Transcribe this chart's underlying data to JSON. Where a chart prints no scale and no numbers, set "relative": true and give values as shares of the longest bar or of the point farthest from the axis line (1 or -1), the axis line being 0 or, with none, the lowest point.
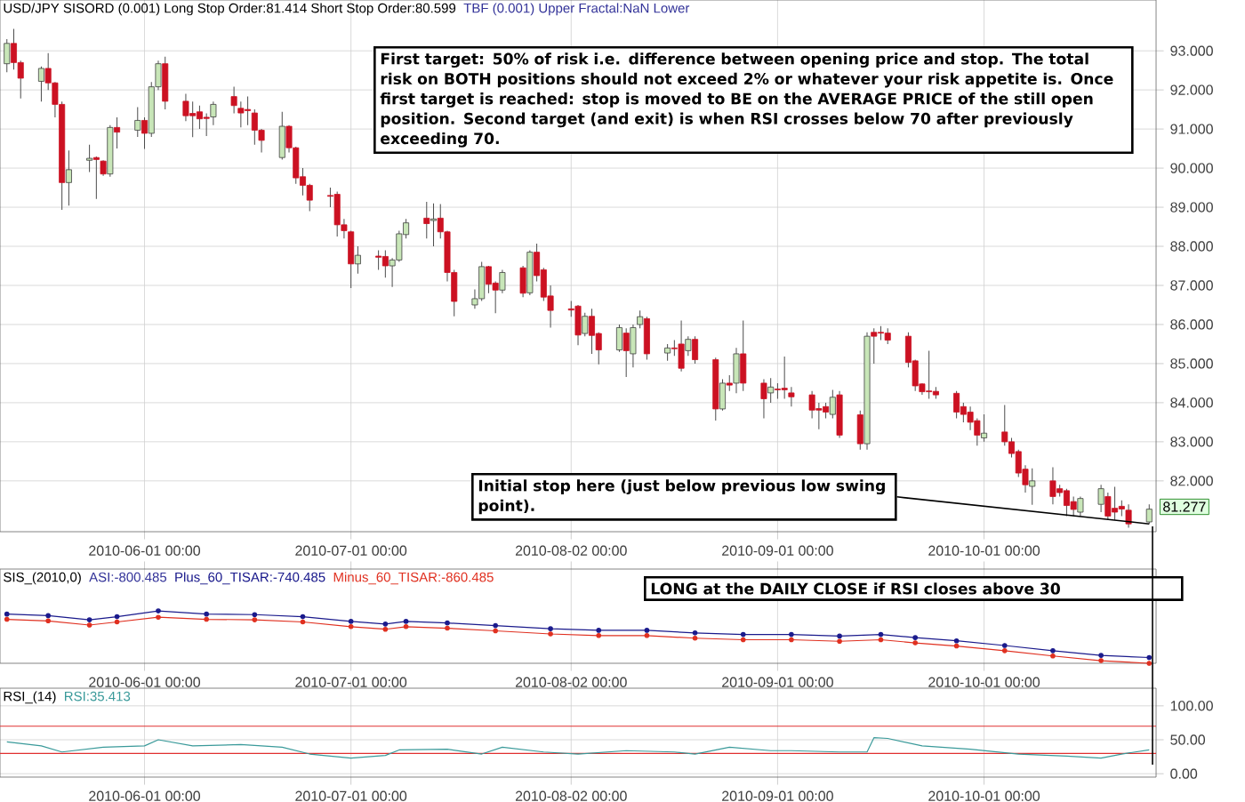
{
  "chart_data": [
    {
      "type": "candlestick",
      "title": "USD/JPY SISORD (0.001) Long Stop Order:81.414 Short Stop Order:80.599",
      "subtitle": "TBF (0.001) Upper Fractal:NaN Lower",
      "x": [
        "2010-05-12",
        "2010-05-13",
        "2010-05-14",
        "2010-05-17",
        "2010-05-18",
        "2010-05-19",
        "2010-05-20",
        "2010-05-21",
        "2010-05-24",
        "2010-05-25",
        "2010-05-26",
        "2010-05-27",
        "2010-05-28",
        "2010-05-31",
        "2010-06-01",
        "2010-06-02",
        "2010-06-03",
        "2010-06-04",
        "2010-06-07",
        "2010-06-08",
        "2010-06-09",
        "2010-06-10",
        "2010-06-11",
        "2010-06-14",
        "2010-06-15",
        "2010-06-16",
        "2010-06-17",
        "2010-06-18",
        "2010-06-21",
        "2010-06-22",
        "2010-06-23",
        "2010-06-24",
        "2010-06-25",
        "2010-06-28",
        "2010-06-29",
        "2010-06-30",
        "2010-07-01",
        "2010-07-02",
        "2010-07-05",
        "2010-07-06",
        "2010-07-07",
        "2010-07-08",
        "2010-07-09",
        "2010-07-12",
        "2010-07-13",
        "2010-07-14",
        "2010-07-15",
        "2010-07-16",
        "2010-07-19",
        "2010-07-20",
        "2010-07-21",
        "2010-07-22",
        "2010-07-23",
        "2010-07-26",
        "2010-07-27",
        "2010-07-28",
        "2010-07-29",
        "2010-07-30",
        "2010-08-02",
        "2010-08-03",
        "2010-08-04",
        "2010-08-05",
        "2010-08-06",
        "2010-08-09",
        "2010-08-10",
        "2010-08-11",
        "2010-08-12",
        "2010-08-13",
        "2010-08-16",
        "2010-08-17",
        "2010-08-18",
        "2010-08-19",
        "2010-08-20",
        "2010-08-23",
        "2010-08-24",
        "2010-08-25",
        "2010-08-26",
        "2010-08-27",
        "2010-08-30",
        "2010-08-31",
        "2010-09-01",
        "2010-09-02",
        "2010-09-03",
        "2010-09-06",
        "2010-09-07",
        "2010-09-08",
        "2010-09-09",
        "2010-09-10",
        "2010-09-13",
        "2010-09-14",
        "2010-09-15",
        "2010-09-16",
        "2010-09-17",
        "2010-09-20",
        "2010-09-21",
        "2010-09-22",
        "2010-09-23",
        "2010-09-24",
        "2010-09-27",
        "2010-09-28",
        "2010-09-29",
        "2010-09-30",
        "2010-10-01",
        "2010-10-04",
        "2010-10-05",
        "2010-10-06",
        "2010-10-07",
        "2010-10-08",
        "2010-10-11",
        "2010-10-12",
        "2010-10-13",
        "2010-10-14",
        "2010-10-15",
        "2010-10-18",
        "2010-10-19",
        "2010-10-20",
        "2010-10-21",
        "2010-10-22",
        "2010-10-25"
      ],
      "ohlc": [
        [
          92.67,
          93.3,
          92.45,
          93.19
        ],
        [
          93.19,
          93.56,
          92.52,
          92.7
        ],
        [
          92.7,
          92.75,
          91.78,
          92.3
        ],
        [
          92.22,
          92.6,
          91.7,
          92.55
        ],
        [
          92.55,
          92.94,
          92.0,
          92.18
        ],
        [
          92.18,
          92.2,
          91.3,
          91.63
        ],
        [
          91.63,
          91.7,
          88.93,
          89.63
        ],
        [
          89.63,
          90.45,
          89.04,
          89.96
        ],
        [
          90.2,
          90.6,
          89.9,
          90.25
        ],
        [
          90.27,
          90.3,
          89.21,
          90.22
        ],
        [
          90.18,
          90.2,
          89.8,
          89.85
        ],
        [
          89.85,
          91.1,
          89.78,
          91.04
        ],
        [
          91.04,
          91.3,
          90.5,
          90.92
        ],
        [
          90.97,
          91.56,
          90.8,
          91.22
        ],
        [
          91.22,
          91.3,
          90.49,
          90.89
        ],
        [
          90.89,
          92.2,
          90.8,
          92.08
        ],
        [
          92.08,
          92.75,
          92.0,
          92.67
        ],
        [
          92.67,
          92.85,
          91.5,
          91.71
        ],
        [
          91.71,
          91.9,
          91.2,
          91.34
        ],
        [
          91.4,
          91.7,
          90.79,
          91.34
        ],
        [
          91.44,
          91.6,
          91.0,
          91.26
        ],
        [
          91.3,
          91.4,
          90.82,
          91.27
        ],
        [
          91.31,
          91.7,
          91.1,
          91.63
        ],
        [
          91.83,
          92.08,
          91.4,
          91.6
        ],
        [
          91.53,
          91.7,
          91.04,
          91.41
        ],
        [
          91.5,
          91.83,
          91.1,
          91.47
        ],
        [
          91.41,
          91.5,
          90.6,
          90.97
        ],
        [
          90.97,
          91.0,
          90.4,
          90.71
        ],
        [
          90.27,
          91.44,
          90.22,
          91.07
        ],
        [
          91.07,
          91.1,
          90.4,
          90.52
        ],
        [
          90.52,
          90.55,
          89.6,
          89.75
        ],
        [
          89.78,
          90.0,
          89.3,
          89.56
        ],
        [
          89.56,
          89.6,
          88.9,
          89.18
        ],
        [
          89.3,
          89.5,
          89.0,
          89.28
        ],
        [
          89.33,
          89.4,
          88.25,
          88.55
        ],
        [
          88.55,
          88.7,
          88.2,
          88.4
        ],
        [
          88.37,
          88.4,
          86.93,
          87.55
        ],
        [
          87.55,
          88.0,
          87.3,
          87.77
        ],
        [
          87.75,
          87.9,
          87.4,
          87.72
        ],
        [
          87.74,
          87.9,
          87.2,
          87.5
        ],
        [
          87.5,
          87.7,
          86.96,
          87.65
        ],
        [
          87.65,
          88.4,
          87.6,
          88.32
        ],
        [
          88.3,
          88.7,
          88.2,
          88.6
        ],
        [
          88.72,
          89.14,
          88.2,
          88.58
        ],
        [
          88.66,
          89.1,
          88.0,
          88.7
        ],
        [
          88.72,
          89.08,
          88.2,
          88.37
        ],
        [
          88.37,
          88.4,
          87.1,
          87.33
        ],
        [
          87.33,
          87.4,
          86.21,
          86.59
        ],
        [
          86.5,
          86.9,
          86.4,
          86.66
        ],
        [
          86.66,
          87.6,
          86.6,
          87.48
        ],
        [
          87.48,
          87.5,
          86.8,
          87.03
        ],
        [
          87.06,
          87.1,
          86.29,
          86.88
        ],
        [
          86.88,
          87.4,
          86.8,
          87.33
        ],
        [
          87.45,
          87.5,
          86.7,
          86.8
        ],
        [
          86.81,
          87.9,
          86.75,
          87.85
        ],
        [
          87.85,
          88.07,
          87.1,
          87.25
        ],
        [
          87.4,
          87.45,
          86.6,
          86.7
        ],
        [
          86.73,
          87.0,
          85.92,
          86.36
        ],
        [
          86.4,
          86.6,
          86.2,
          86.37
        ],
        [
          86.47,
          86.5,
          85.47,
          85.73
        ],
        [
          85.77,
          86.3,
          85.7,
          86.21
        ],
        [
          86.21,
          86.4,
          85.25,
          85.72
        ],
        [
          85.77,
          85.8,
          84.98,
          85.35
        ],
        [
          85.35,
          86.0,
          85.3,
          85.92
        ],
        [
          85.78,
          85.9,
          84.66,
          85.33
        ],
        [
          85.25,
          86.0,
          84.9,
          85.92
        ],
        [
          86.0,
          86.36,
          85.9,
          86.2
        ],
        [
          86.15,
          86.2,
          85.1,
          85.25
        ],
        [
          85.27,
          85.5,
          85.07,
          85.4
        ],
        [
          85.4,
          85.6,
          85.2,
          85.38
        ],
        [
          85.5,
          86.1,
          84.8,
          84.88
        ],
        [
          85.33,
          85.7,
          85.2,
          85.62
        ],
        [
          85.62,
          85.7,
          85.0,
          85.1
        ],
        [
          85.1,
          85.15,
          83.54,
          83.84
        ],
        [
          83.84,
          84.6,
          83.8,
          84.5
        ],
        [
          84.5,
          84.7,
          84.3,
          84.45
        ],
        [
          84.5,
          85.4,
          84.24,
          85.25
        ],
        [
          85.25,
          86.1,
          84.3,
          84.5
        ],
        [
          84.5,
          84.6,
          83.6,
          84.1
        ],
        [
          84.25,
          84.63,
          84.0,
          84.4
        ],
        [
          84.35,
          84.5,
          84.1,
          84.33
        ],
        [
          84.37,
          85.18,
          84.1,
          84.33
        ],
        [
          84.25,
          84.4,
          83.9,
          84.15
        ],
        [
          84.2,
          84.3,
          83.6,
          83.81
        ],
        [
          83.85,
          84.0,
          83.32,
          83.81
        ],
        [
          83.9,
          84.0,
          83.6,
          83.76
        ],
        [
          83.7,
          84.33,
          83.6,
          84.14
        ],
        [
          84.2,
          84.3,
          83.1,
          83.17
        ],
        [
          83.69,
          83.8,
          82.8,
          82.95
        ],
        [
          82.95,
          85.8,
          82.8,
          85.7
        ],
        [
          85.8,
          85.9,
          85.0,
          85.7
        ],
        [
          85.8,
          85.96,
          85.6,
          85.78
        ],
        [
          85.78,
          85.9,
          85.5,
          85.6
        ],
        [
          85.7,
          85.8,
          84.9,
          85.03
        ],
        [
          85.07,
          85.1,
          84.3,
          84.43
        ],
        [
          84.48,
          84.5,
          84.2,
          84.28
        ],
        [
          84.3,
          85.33,
          84.1,
          84.28
        ],
        [
          84.29,
          84.4,
          84.1,
          84.2
        ],
        [
          84.24,
          84.3,
          83.6,
          83.76
        ],
        [
          83.9,
          84.0,
          83.5,
          83.7
        ],
        [
          83.76,
          83.9,
          83.3,
          83.5
        ],
        [
          83.54,
          83.6,
          82.9,
          83.17
        ],
        [
          83.1,
          83.7,
          83.0,
          83.22
        ],
        [
          83.25,
          83.94,
          82.9,
          83.0
        ],
        [
          83.0,
          83.1,
          82.6,
          82.7
        ],
        [
          82.75,
          82.8,
          82.1,
          82.2
        ],
        [
          82.3,
          82.4,
          81.7,
          81.9
        ],
        [
          81.86,
          82.32,
          81.39,
          82.0
        ],
        [
          82.0,
          82.35,
          81.4,
          81.6
        ],
        [
          81.8,
          81.9,
          81.6,
          81.7
        ],
        [
          81.75,
          81.8,
          81.1,
          81.37
        ],
        [
          81.47,
          81.6,
          81.1,
          81.27
        ],
        [
          81.2,
          81.6,
          81.1,
          81.55
        ],
        [
          81.4,
          81.9,
          81.2,
          81.8
        ],
        [
          81.6,
          81.7,
          81.0,
          81.1
        ],
        [
          81.3,
          81.85,
          81.0,
          81.2
        ],
        [
          81.35,
          81.5,
          81.1,
          81.28
        ],
        [
          81.25,
          81.4,
          80.8,
          80.9
        ],
        [
          80.95,
          81.4,
          80.9,
          81.277
        ]
      ],
      "xlim": [
        "2010-05-11",
        "2010-10-26"
      ],
      "ylim": [
        80.7,
        94.3
      ],
      "xticks": [
        {
          "value": "2010-06-01T00:00",
          "label": "2010-06-01 00:00"
        },
        {
          "value": "2010-07-01T00:00",
          "label": "2010-07-01 00:00"
        },
        {
          "value": "2010-08-02T00:00",
          "label": "2010-08-02 00:00"
        },
        {
          "value": "2010-09-01T00:00",
          "label": "2010-09-01 00:00"
        },
        {
          "value": "2010-10-01T00:00",
          "label": "2010-10-01 00:00"
        }
      ],
      "yticks": [
        {
          "value": 82,
          "label": "82.000"
        },
        {
          "value": 83,
          "label": "83.000"
        },
        {
          "value": 84,
          "label": "84.000"
        },
        {
          "value": 85,
          "label": "85.000"
        },
        {
          "value": 86,
          "label": "86.000"
        },
        {
          "value": 87,
          "label": "87.000"
        },
        {
          "value": 88,
          "label": "88.000"
        },
        {
          "value": 89,
          "label": "89.000"
        },
        {
          "value": 90,
          "label": "90.000"
        },
        {
          "value": 91,
          "label": "91.000"
        },
        {
          "value": 92,
          "label": "92.000"
        },
        {
          "value": 93,
          "label": "93.000"
        }
      ],
      "grid": true,
      "annotations": [
        "First target: 50% of risk i.e. difference between opening price and stop. The total risk on BOTH positions should not exceed 2% or whatever your risk appetite is. Once first target is reached: stop is moved to BE on the AVERAGE PRICE of the still open position. Second target (and exit) is when RSI crosses below 70 after previously exceeding 70.",
        {
          "text": "Initial stop here (just below previous low swing point).",
          "x": "2010-10-25",
          "y": 80.9
        },
        "81.277"
      ]
    },
    {
      "type": "line",
      "title": "SIS_(2010,0)",
      "subtitle": "ASI:-800.485",
      "relative": true,
      "marker": "circle",
      "legend": "top left",
      "grid": true,
      "xlim": [
        "2010-05-11",
        "2010-10-26"
      ],
      "xticks": [
        {
          "value": "2010-06-01T00:00",
          "label": "2010-06-01 00:00"
        },
        {
          "value": "2010-07-01T00:00",
          "label": "2010-07-01 00:00"
        },
        {
          "value": "2010-08-02T00:00",
          "label": "2010-08-02 00:00"
        },
        {
          "value": "2010-09-01T00:00",
          "label": "2010-09-01 00:00"
        },
        {
          "value": "2010-10-01T00:00",
          "label": "2010-10-01 00:00"
        }
      ],
      "series": [
        {
          "name": "Plus_60_TISAR:-740.485",
          "color": "#1a1a8c",
          "x": [
            "2010-05-12",
            "2010-05-18",
            "2010-05-24",
            "2010-05-28",
            "2010-06-03",
            "2010-06-10",
            "2010-06-17",
            "2010-06-24",
            "2010-07-01",
            "2010-07-06",
            "2010-07-09",
            "2010-07-15",
            "2010-07-22",
            "2010-07-30",
            "2010-08-06",
            "2010-08-13",
            "2010-08-20",
            "2010-08-27",
            "2010-09-03",
            "2010-09-10",
            "2010-09-16",
            "2010-09-21",
            "2010-09-27",
            "2010-10-04",
            "2010-10-11",
            "2010-10-18",
            "2010-10-25"
          ],
          "values": [
            0.94,
            0.91,
            0.83,
            0.89,
            1.0,
            0.94,
            0.93,
            0.89,
            0.8,
            0.75,
            0.8,
            0.77,
            0.72,
            0.66,
            0.63,
            0.63,
            0.58,
            0.55,
            0.55,
            0.52,
            0.55,
            0.49,
            0.43,
            0.34,
            0.24,
            0.15,
            0.11
          ]
        },
        {
          "name": "Minus_60_TISAR:-860.485",
          "color": "#e03020",
          "x": [
            "2010-05-12",
            "2010-05-18",
            "2010-05-24",
            "2010-05-28",
            "2010-06-03",
            "2010-06-10",
            "2010-06-17",
            "2010-06-24",
            "2010-07-01",
            "2010-07-06",
            "2010-07-09",
            "2010-07-15",
            "2010-07-22",
            "2010-07-30",
            "2010-08-06",
            "2010-08-13",
            "2010-08-20",
            "2010-08-27",
            "2010-09-03",
            "2010-09-10",
            "2010-09-16",
            "2010-09-21",
            "2010-09-27",
            "2010-10-04",
            "2010-10-11",
            "2010-10-18",
            "2010-10-25"
          ],
          "values": [
            0.84,
            0.81,
            0.73,
            0.79,
            0.88,
            0.84,
            0.83,
            0.79,
            0.7,
            0.65,
            0.7,
            0.67,
            0.62,
            0.56,
            0.53,
            0.53,
            0.48,
            0.45,
            0.45,
            0.42,
            0.45,
            0.39,
            0.33,
            0.24,
            0.14,
            0.05,
            0.0
          ]
        }
      ]
    },
    {
      "type": "line",
      "title": "RSI_(14)",
      "legend": "top left",
      "grid": true,
      "xlim": [
        "2010-05-11",
        "2010-10-26"
      ],
      "ylim": [
        -5,
        126
      ],
      "xticks": [
        {
          "value": "2010-06-01T00:00",
          "label": "2010-06-01 00:00"
        },
        {
          "value": "2010-07-01T00:00",
          "label": "2010-07-01 00:00"
        },
        {
          "value": "2010-08-02T00:00",
          "label": "2010-08-02 00:00"
        },
        {
          "value": "2010-09-01T00:00",
          "label": "2010-09-01 00:00"
        },
        {
          "value": "2010-10-01T00:00",
          "label": "2010-10-01 00:00"
        }
      ],
      "yticks": [
        {
          "value": 0,
          "label": "0.00"
        },
        {
          "value": 50,
          "label": "50.00"
        },
        {
          "value": 100,
          "label": "100.00"
        }
      ],
      "ref_lines": [
        {
          "axis": "y",
          "value": 70,
          "color": "#e03030"
        },
        {
          "axis": "y",
          "value": 30,
          "color": "#e03030"
        }
      ],
      "series": [
        {
          "name": "RSI:35.413",
          "color": "#3a9a9a",
          "x": [
            "2010-05-12",
            "2010-05-17",
            "2010-05-20",
            "2010-05-26",
            "2010-06-01",
            "2010-06-03",
            "2010-06-08",
            "2010-06-15",
            "2010-06-21",
            "2010-06-25",
            "2010-07-01",
            "2010-07-06",
            "2010-07-08",
            "2010-07-15",
            "2010-07-20",
            "2010-07-23",
            "2010-07-29",
            "2010-08-03",
            "2010-08-10",
            "2010-08-17",
            "2010-08-20",
            "2010-08-25",
            "2010-08-31",
            "2010-09-03",
            "2010-09-10",
            "2010-09-14",
            "2010-09-15",
            "2010-09-17",
            "2010-09-22",
            "2010-09-29",
            "2010-10-06",
            "2010-10-13",
            "2010-10-18",
            "2010-10-21",
            "2010-10-25"
          ],
          "values": [
            47,
            41,
            32,
            39,
            41,
            50,
            41,
            43,
            39,
            29,
            23,
            27,
            35,
            36,
            29,
            39,
            32,
            29,
            34,
            32,
            29,
            39,
            34,
            34,
            32,
            32,
            53,
            52,
            41,
            36,
            29,
            26,
            23,
            29,
            35
          ]
        }
      ],
      "annotations": [
        "LONG at the DAILY CLOSE if RSI closes above 30"
      ]
    }
  ]
}
